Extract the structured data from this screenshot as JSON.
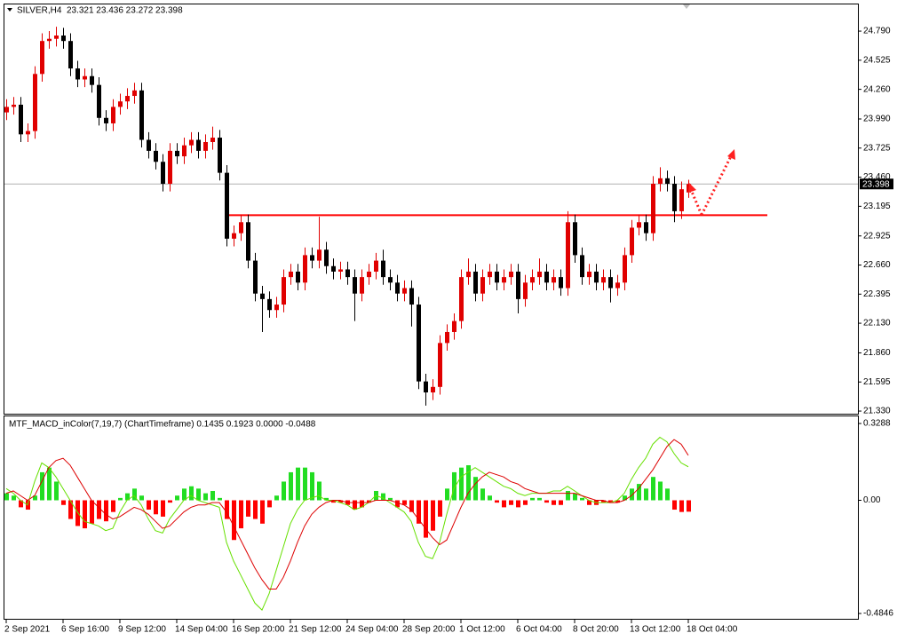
{
  "chart_data": [
    {
      "type": "candlestick",
      "title": "SILVER,H4  23.321 23.436 23.272 23.398",
      "categories": [
        "2 Sep 2021",
        null,
        null,
        null,
        null,
        null,
        null,
        null,
        "6 Sep 16:00",
        null,
        null,
        null,
        null,
        null,
        null,
        null,
        "9 Sep 12:00",
        null,
        null,
        null,
        null,
        null,
        null,
        null,
        "14 Sep 04:00",
        null,
        null,
        null,
        null,
        null,
        null,
        null,
        "16 Sep 20:00",
        null,
        null,
        null,
        null,
        null,
        null,
        null,
        "21 Sep 12:00",
        null,
        null,
        null,
        null,
        null,
        null,
        null,
        "24 Sep 04:00",
        null,
        null,
        null,
        null,
        null,
        null,
        null,
        "28 Sep 20:00",
        null,
        null,
        null,
        null,
        null,
        null,
        null,
        "1 Oct 12:00",
        null,
        null,
        null,
        null,
        null,
        null,
        null,
        "6 Oct 04:00",
        null,
        null,
        null,
        null,
        null,
        null,
        null,
        "8 Oct 20:00",
        null,
        null,
        null,
        null,
        null,
        null,
        null,
        "13 Oct 12:00",
        null,
        null,
        null,
        null,
        null,
        null,
        null,
        "18 Oct 04:00"
      ],
      "open": [
        24.05,
        24.1,
        24.12,
        23.85,
        23.88,
        24.4,
        24.7,
        24.72,
        24.75,
        24.7,
        24.45,
        24.35,
        24.38,
        24.3,
        24.0,
        23.95,
        24.1,
        24.15,
        24.2,
        24.25,
        23.8,
        23.7,
        23.6,
        23.4,
        23.7,
        23.65,
        23.75,
        23.8,
        23.7,
        23.78,
        23.82,
        23.5,
        22.9,
        22.95,
        23.05,
        22.7,
        22.4,
        22.35,
        22.25,
        22.3,
        22.55,
        22.6,
        22.5,
        22.75,
        22.7,
        22.8,
        22.65,
        22.6,
        22.62,
        22.55,
        22.4,
        22.55,
        22.6,
        22.7,
        22.55,
        22.5,
        22.4,
        22.45,
        22.3,
        21.6,
        21.5,
        21.55,
        21.95,
        22.05,
        22.15,
        22.55,
        22.6,
        22.4,
        22.55,
        22.6,
        22.5,
        22.55,
        22.6,
        22.35,
        22.5,
        22.55,
        22.6,
        22.5,
        22.55,
        22.45,
        23.05,
        22.75,
        22.55,
        22.6,
        22.5,
        22.55,
        22.45,
        22.5,
        22.75,
        23.0,
        23.05,
        22.95,
        23.4,
        23.45,
        23.4,
        23.15,
        23.321
      ],
      "high": [
        24.17,
        24.19,
        24.19,
        23.95,
        24.47,
        24.77,
        24.79,
        24.83,
        24.82,
        24.77,
        24.52,
        24.45,
        24.45,
        24.37,
        24.07,
        24.17,
        24.22,
        24.27,
        24.32,
        24.32,
        23.87,
        23.77,
        23.67,
        23.77,
        23.77,
        23.82,
        23.87,
        23.87,
        23.85,
        23.92,
        23.89,
        23.57,
        23.02,
        23.12,
        23.12,
        22.77,
        22.47,
        22.42,
        22.37,
        22.62,
        22.67,
        22.67,
        22.82,
        22.82,
        23.1,
        22.87,
        22.72,
        22.69,
        22.69,
        22.62,
        22.62,
        22.67,
        22.77,
        22.8,
        22.62,
        22.57,
        22.52,
        22.52,
        22.37,
        21.67,
        21.62,
        22.02,
        22.12,
        22.22,
        22.62,
        22.72,
        22.67,
        22.62,
        22.67,
        22.67,
        22.62,
        22.67,
        22.67,
        22.57,
        22.62,
        22.72,
        22.67,
        22.62,
        22.62,
        23.15,
        23.12,
        22.82,
        22.67,
        22.67,
        22.62,
        22.62,
        22.57,
        22.82,
        23.07,
        23.12,
        23.12,
        23.47,
        23.55,
        23.52,
        23.47,
        23.42,
        23.436
      ],
      "low": [
        23.98,
        24.03,
        23.78,
        23.78,
        23.81,
        24.33,
        24.63,
        24.65,
        24.63,
        24.38,
        24.28,
        24.28,
        24.23,
        23.93,
        23.88,
        23.88,
        24.03,
        24.08,
        24.13,
        23.73,
        23.63,
        23.53,
        23.33,
        23.33,
        23.58,
        23.58,
        23.68,
        23.63,
        23.63,
        23.71,
        23.43,
        22.83,
        22.83,
        22.88,
        22.63,
        22.33,
        22.05,
        22.18,
        22.18,
        22.23,
        22.48,
        22.43,
        22.43,
        22.63,
        22.63,
        22.58,
        22.53,
        22.53,
        22.48,
        22.15,
        22.33,
        22.48,
        22.53,
        22.48,
        22.43,
        22.33,
        22.33,
        22.1,
        21.53,
        21.38,
        21.43,
        21.48,
        21.88,
        21.98,
        22.08,
        22.48,
        22.33,
        22.33,
        22.48,
        22.43,
        22.43,
        22.48,
        22.22,
        22.28,
        22.43,
        22.48,
        22.43,
        22.43,
        22.38,
        22.38,
        22.68,
        22.48,
        22.48,
        22.43,
        22.43,
        22.32,
        22.38,
        22.43,
        22.68,
        22.93,
        22.88,
        22.88,
        23.33,
        23.33,
        23.05,
        23.08,
        23.272
      ],
      "close": [
        24.1,
        24.12,
        23.85,
        23.88,
        24.4,
        24.7,
        24.72,
        24.75,
        24.7,
        24.45,
        24.35,
        24.38,
        24.3,
        24.0,
        23.95,
        24.1,
        24.15,
        24.2,
        24.25,
        23.8,
        23.7,
        23.6,
        23.4,
        23.7,
        23.65,
        23.75,
        23.8,
        23.7,
        23.78,
        23.82,
        23.5,
        22.9,
        22.95,
        23.05,
        22.7,
        22.4,
        22.35,
        22.25,
        22.3,
        22.55,
        22.6,
        22.5,
        22.75,
        22.7,
        22.8,
        22.65,
        22.6,
        22.62,
        22.55,
        22.4,
        22.55,
        22.6,
        22.7,
        22.55,
        22.5,
        22.4,
        22.45,
        22.3,
        21.6,
        21.5,
        21.55,
        21.95,
        22.05,
        22.15,
        22.55,
        22.6,
        22.4,
        22.55,
        22.6,
        22.5,
        22.55,
        22.6,
        22.35,
        22.5,
        22.55,
        22.6,
        22.5,
        22.55,
        22.45,
        23.05,
        22.75,
        22.55,
        22.6,
        22.5,
        22.55,
        22.45,
        22.5,
        22.75,
        23.0,
        23.05,
        22.95,
        23.4,
        23.45,
        23.4,
        23.15,
        23.35,
        23.398
      ],
      "bull_color": "#e00000",
      "bear_color": "#000000",
      "ylim": [
        21.306,
        25.033
      ],
      "yticks": [
        {
          "value": 24.79,
          "label": "24.790"
        },
        {
          "value": 24.525,
          "label": "24.525"
        },
        {
          "value": 24.26,
          "label": "24.260"
        },
        {
          "value": 23.99,
          "label": "23.990"
        },
        {
          "value": 23.725,
          "label": "23.725"
        },
        {
          "value": 23.46,
          "label": "23.460"
        },
        {
          "value": 23.195,
          "label": "23.195"
        },
        {
          "value": 22.925,
          "label": "22.925"
        },
        {
          "value": 22.66,
          "label": "22.660"
        },
        {
          "value": 22.395,
          "label": "22.395"
        },
        {
          "value": 22.13,
          "label": "22.130"
        },
        {
          "value": 21.86,
          "label": "21.860"
        },
        {
          "value": 21.595,
          "label": "21.595"
        },
        {
          "value": 21.33,
          "label": "21.330"
        }
      ],
      "last_price": 23.398,
      "hline": 23.114,
      "hline_color": "#ff0000"
    },
    {
      "type": "macd",
      "title": "MTF_MACD_inColor(7,19,7) (ChartTimeframe) 0.1435 0.1923 0.0000 -0.0488",
      "values": [
        0.03,
        0.02,
        -0.03,
        -0.04,
        0.02,
        0.12,
        0.14,
        0.08,
        -0.02,
        -0.08,
        -0.11,
        -0.12,
        -0.1,
        -0.08,
        -0.09,
        -0.05,
        0.01,
        0.03,
        0.05,
        0.02,
        -0.04,
        -0.06,
        -0.07,
        -0.01,
        0.02,
        0.05,
        0.06,
        0.05,
        0.03,
        0.04,
        0.01,
        -0.08,
        -0.17,
        -0.12,
        -0.07,
        -0.08,
        -0.1,
        -0.03,
        0.02,
        0.08,
        0.12,
        0.14,
        0.14,
        0.12,
        0.08,
        0.01,
        -0.01,
        -0.01,
        -0.02,
        -0.04,
        -0.03,
        -0.01,
        0.04,
        0.03,
        0.01,
        -0.03,
        -0.02,
        -0.05,
        -0.1,
        -0.16,
        -0.13,
        -0.07,
        0.05,
        0.12,
        0.14,
        0.15,
        0.1,
        0.05,
        0.02,
        -0.01,
        -0.03,
        -0.02,
        -0.03,
        -0.02,
        0.01,
        0.01,
        -0.01,
        -0.02,
        -0.02,
        0.04,
        0.03,
        0.01,
        -0.02,
        -0.02,
        -0.01,
        -0.01,
        -0.01,
        0.02,
        0.05,
        0.07,
        0.05,
        0.1,
        0.08,
        0.05,
        -0.04,
        -0.05,
        -0.0488
      ],
      "up_color": "#22dd22",
      "down_color": "#ff0000",
      "series": [
        {
          "color": "#66e000",
          "values": [
            0.05,
            0.03,
            0.0,
            -0.02,
            0.08,
            0.16,
            0.14,
            0.1,
            0.05,
            0.0,
            -0.05,
            -0.09,
            -0.1,
            -0.11,
            -0.13,
            -0.12,
            -0.05,
            0.0,
            0.02,
            -0.02,
            -0.08,
            -0.13,
            -0.14,
            -0.08,
            -0.04,
            0.0,
            0.02,
            0.0,
            -0.01,
            -0.02,
            -0.03,
            -0.18,
            -0.26,
            -0.32,
            -0.38,
            -0.44,
            -0.47,
            -0.4,
            -0.3,
            -0.2,
            -0.1,
            -0.04,
            0.0,
            0.01,
            0.02,
            0.0,
            0.0,
            -0.01,
            -0.02,
            -0.04,
            -0.03,
            -0.01,
            0.02,
            0.01,
            -0.01,
            -0.03,
            -0.05,
            -0.09,
            -0.18,
            -0.24,
            -0.25,
            -0.18,
            -0.06,
            0.05,
            0.1,
            0.12,
            0.14,
            0.12,
            0.1,
            0.08,
            0.06,
            0.05,
            0.03,
            0.02,
            0.03,
            0.03,
            0.03,
            0.04,
            0.04,
            0.06,
            0.04,
            0.02,
            0.0,
            -0.01,
            -0.01,
            -0.01,
            0.0,
            0.03,
            0.09,
            0.14,
            0.18,
            0.24,
            0.27,
            0.25,
            0.2,
            0.16,
            0.1435
          ]
        },
        {
          "color": "#dd0000",
          "values": [
            0.03,
            0.04,
            0.02,
            0.0,
            0.02,
            0.08,
            0.14,
            0.17,
            0.18,
            0.15,
            0.1,
            0.05,
            0.0,
            -0.03,
            -0.06,
            -0.08,
            -0.07,
            -0.05,
            -0.03,
            -0.04,
            -0.06,
            -0.09,
            -0.12,
            -0.11,
            -0.08,
            -0.05,
            -0.03,
            -0.02,
            -0.02,
            -0.01,
            -0.01,
            -0.05,
            -0.11,
            -0.17,
            -0.23,
            -0.29,
            -0.34,
            -0.38,
            -0.38,
            -0.33,
            -0.26,
            -0.18,
            -0.11,
            -0.06,
            -0.03,
            -0.01,
            0.0,
            0.0,
            -0.01,
            -0.01,
            -0.01,
            -0.01,
            0.0,
            0.0,
            0.0,
            -0.01,
            -0.02,
            -0.04,
            -0.08,
            -0.12,
            -0.16,
            -0.19,
            -0.17,
            -0.1,
            -0.03,
            0.03,
            0.07,
            0.1,
            0.12,
            0.11,
            0.1,
            0.08,
            0.07,
            0.05,
            0.04,
            0.03,
            0.03,
            0.03,
            0.03,
            0.03,
            0.03,
            0.02,
            0.01,
            0.0,
            0.0,
            -0.01,
            -0.01,
            0.0,
            0.02,
            0.05,
            0.09,
            0.13,
            0.18,
            0.23,
            0.26,
            0.24,
            0.1923
          ]
        }
      ],
      "ylim": [
        -0.5074,
        0.3592
      ],
      "yticks": [
        0.3288,
        {
          "value": 0,
          "label": "0.00"
        },
        -0.4846
      ]
    }
  ]
}
